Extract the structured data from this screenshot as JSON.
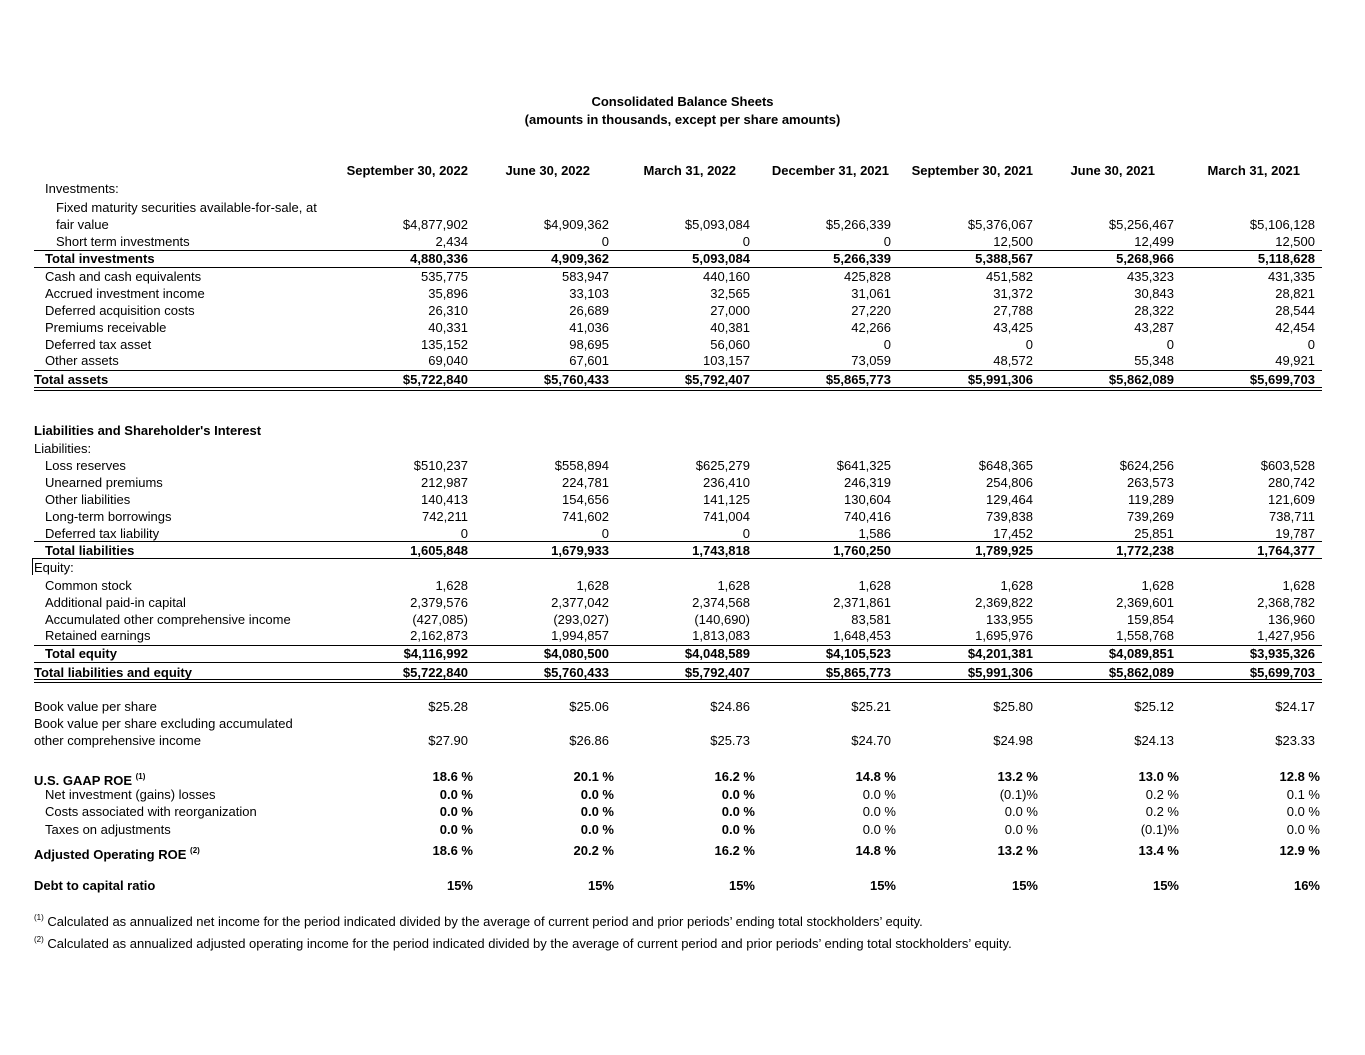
{
  "title": "Consolidated Balance Sheets",
  "subtitle": "(amounts in thousands, except per share amounts)",
  "columns": [
    "September 30, 2022",
    "June 30, 2022",
    "March 31, 2022",
    "December 31, 2021",
    "September 30, 2021",
    "June 30, 2021",
    "March 31, 2021"
  ],
  "assets": {
    "investments_label": "Investments:",
    "fixed_label_1": "Fixed maturity securities available-for-sale, at",
    "fixed_label_2": "fair value",
    "fixed_values": [
      "$4,877,902",
      "$4,909,362",
      "$5,093,084",
      "$5,266,339",
      "$5,376,067",
      "$5,256,467",
      "$5,106,128"
    ],
    "short_label": "Short term investments",
    "short_values": [
      "2,434",
      "0",
      "0",
      "0",
      "12,500",
      "12,499",
      "12,500"
    ],
    "total_inv_label": "Total investments",
    "total_inv_values": [
      "4,880,336",
      "4,909,362",
      "5,093,084",
      "5,266,339",
      "5,388,567",
      "5,268,966",
      "5,118,628"
    ],
    "cash_label": "Cash and cash equivalents",
    "cash_values": [
      "535,775",
      "583,947",
      "440,160",
      "425,828",
      "451,582",
      "435,323",
      "431,335"
    ],
    "accrued_label": "Accrued investment income",
    "accrued_values": [
      "35,896",
      "33,103",
      "32,565",
      "31,061",
      "31,372",
      "30,843",
      "28,821"
    ],
    "dac_label": "Deferred acquisition costs",
    "dac_values": [
      "26,310",
      "26,689",
      "27,000",
      "27,220",
      "27,788",
      "28,322",
      "28,544"
    ],
    "prem_label": "Premiums receivable",
    "prem_values": [
      "40,331",
      "41,036",
      "40,381",
      "42,266",
      "43,425",
      "43,287",
      "42,454"
    ],
    "dta_label": "Deferred tax asset",
    "dta_values": [
      "135,152",
      "98,695",
      "56,060",
      "0",
      "0",
      "0",
      "0"
    ],
    "other_label": "Other assets",
    "other_values": [
      "69,040",
      "67,601",
      "103,157",
      "73,059",
      "48,572",
      "55,348",
      "49,921"
    ],
    "total_label": "Total assets",
    "total_values": [
      "$5,722,840",
      "$5,760,433",
      "$5,792,407",
      "$5,865,773",
      "$5,991,306",
      "$5,862,089",
      "$5,699,703"
    ]
  },
  "liab": {
    "section_label": "Liabilities and Shareholder's Interest",
    "liabilities_label": "Liabilities:",
    "loss_label": "Loss reserves",
    "loss_values": [
      "$510,237",
      "$558,894",
      "$625,279",
      "$641,325",
      "$648,365",
      "$624,256",
      "$603,528"
    ],
    "unearned_label": "Unearned premiums",
    "unearned_values": [
      "212,987",
      "224,781",
      "236,410",
      "246,319",
      "254,806",
      "263,573",
      "280,742"
    ],
    "other_label": "Other liabilities",
    "other_values": [
      "140,413",
      "154,656",
      "141,125",
      "130,604",
      "129,464",
      "119,289",
      "121,609"
    ],
    "ltb_label": "Long-term borrowings",
    "ltb_values": [
      "742,211",
      "741,602",
      "741,004",
      "740,416",
      "739,838",
      "739,269",
      "738,711"
    ],
    "dtl_label": "Deferred tax liability",
    "dtl_values": [
      "0",
      "0",
      "0",
      "1,586",
      "17,452",
      "25,851",
      "19,787"
    ],
    "total_label": "Total liabilities",
    "total_values": [
      "1,605,848",
      "1,679,933",
      "1,743,818",
      "1,760,250",
      "1,789,925",
      "1,772,238",
      "1,764,377"
    ]
  },
  "equity": {
    "equity_label": "Equity:",
    "cs_label": "Common stock",
    "cs_values": [
      "1,628",
      "1,628",
      "1,628",
      "1,628",
      "1,628",
      "1,628",
      "1,628"
    ],
    "apic_label": "Additional paid-in capital",
    "apic_values": [
      "2,379,576",
      "2,377,042",
      "2,374,568",
      "2,371,861",
      "2,369,822",
      "2,369,601",
      "2,368,782"
    ],
    "aoci_label": "Accumulated other comprehensive income",
    "aoci_values": [
      "(427,085)",
      "(293,027)",
      "(140,690)",
      "83,581",
      "133,955",
      "159,854",
      "136,960"
    ],
    "re_label": "Retained earnings",
    "re_values": [
      "2,162,873",
      "1,994,857",
      "1,813,083",
      "1,648,453",
      "1,695,976",
      "1,558,768",
      "1,427,956"
    ],
    "total_label": "Total equity",
    "total_values": [
      "$4,116,992",
      "$4,080,500",
      "$4,048,589",
      "$4,105,523",
      "$4,201,381",
      "$4,089,851",
      "$3,935,326"
    ],
    "tle_label": "Total liabilities and equity",
    "tle_values": [
      "$5,722,840",
      "$5,760,433",
      "$5,792,407",
      "$5,865,773",
      "$5,991,306",
      "$5,862,089",
      "$5,699,703"
    ]
  },
  "metrics": {
    "bvps_label": "Book value per share",
    "bvps_values": [
      "$25.28",
      "$25.06",
      "$24.86",
      "$25.21",
      "$25.80",
      "$25.12",
      "$24.17"
    ],
    "bvx_label_1": "Book value per share excluding accumulated",
    "bvx_label_2": "other comprehensive income",
    "bvx_values": [
      "$27.90",
      "$26.86",
      "$25.73",
      "$24.70",
      "$24.98",
      "$24.13",
      "$23.33"
    ],
    "roe_label": "U.S. GAAP ROE",
    "roe_sup": "(1)",
    "roe_values": [
      "18.6 %",
      "20.1 %",
      "16.2 %",
      "14.8 %",
      "13.2 %",
      "13.0 %",
      "12.8 %"
    ],
    "nig_label": "Net investment (gains) losses",
    "nig_values": [
      "0.0 %",
      "0.0 %",
      "0.0 %",
      "0.0 %",
      "(0.1)%",
      "0.2 %",
      "0.1 %"
    ],
    "reorg_label": "Costs associated with reorganization",
    "reorg_values": [
      "0.0 %",
      "0.0 %",
      "0.0 %",
      "0.0 %",
      "0.0 %",
      "0.2 %",
      "0.0 %"
    ],
    "tax_label": "Taxes on adjustments",
    "tax_values": [
      "0.0 %",
      "0.0 %",
      "0.0 %",
      "0.0 %",
      "0.0 %",
      "(0.1)%",
      "0.0 %"
    ],
    "aroe_label": "Adjusted Operating ROE",
    "aroe_sup": "(2)",
    "aroe_values": [
      "18.6 %",
      "20.2 %",
      "16.2 %",
      "14.8 %",
      "13.2 %",
      "13.4 %",
      "12.9 %"
    ],
    "dtc_label": "Debt to capital ratio",
    "dtc_values": [
      "15%",
      "15%",
      "15%",
      "15%",
      "15%",
      "15%",
      "16%"
    ]
  },
  "footnotes": {
    "fn1_sup": "(1)",
    "fn1": "Calculated as annualized net income for the period indicated divided by the average of current period and prior periods’ ending total stockholders’ equity.",
    "fn2_sup": "(2)",
    "fn2": "Calculated as annualized adjusted operating income for the period indicated divided by the average of current period and prior periods’ ending total stockholders’ equity."
  }
}
